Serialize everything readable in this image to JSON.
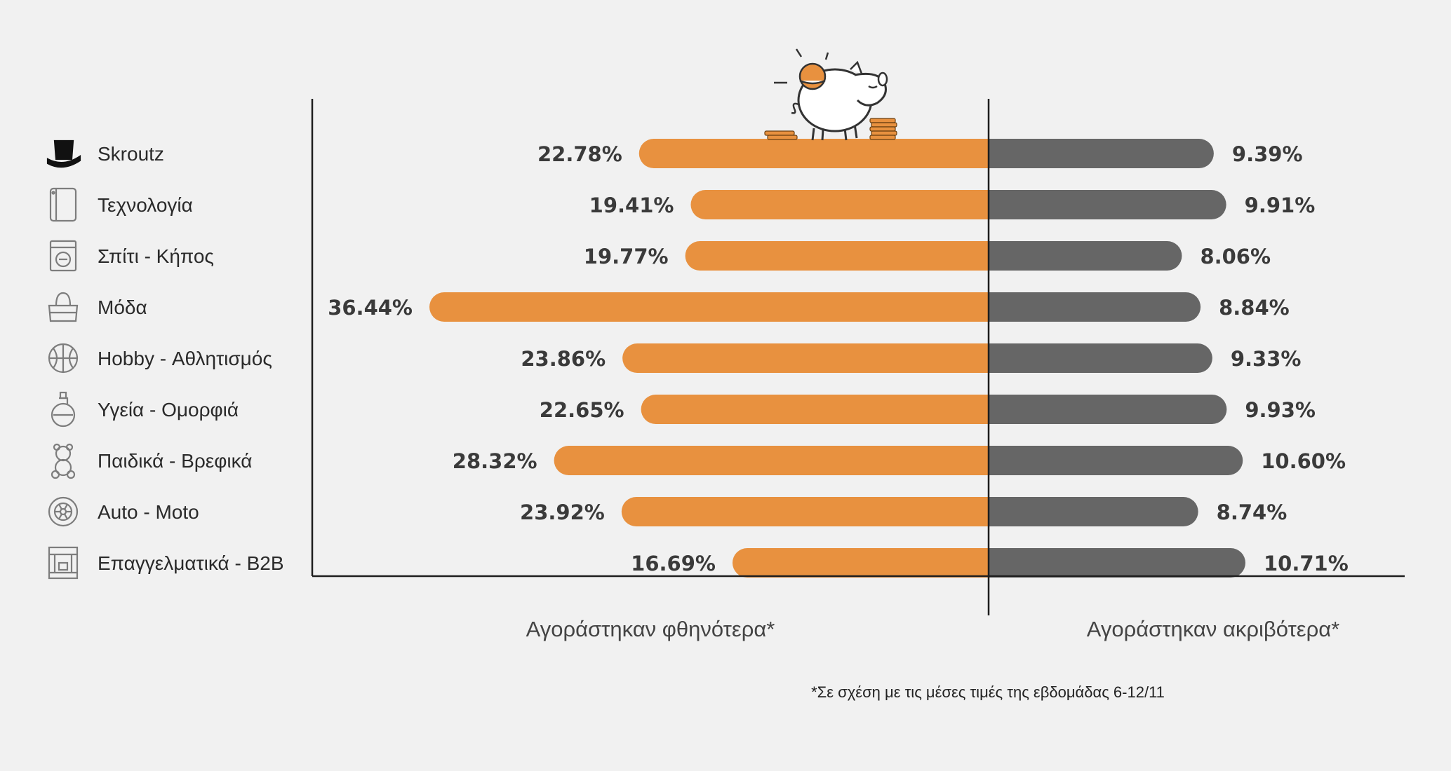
{
  "chart_data": {
    "type": "bar",
    "orientation": "horizontal-diverging",
    "categories": [
      {
        "label": "Skroutz",
        "icon": "top-hat-icon"
      },
      {
        "label": "Τεχνολογία",
        "icon": "smartphone-icon"
      },
      {
        "label": "Σπίτι - Κήπος",
        "icon": "washing-machine-icon"
      },
      {
        "label": "Μόδα",
        "icon": "handbag-icon"
      },
      {
        "label": "Hobby - Αθλητισμός",
        "icon": "basketball-icon"
      },
      {
        "label": "Υγεία - Ομορφιά",
        "icon": "perfume-bottle-icon"
      },
      {
        "label": "Παιδικά - Βρεφικά",
        "icon": "teddy-bear-icon"
      },
      {
        "label": "Auto - Moto",
        "icon": "wheel-icon"
      },
      {
        "label": "Επαγγελματικά - B2B",
        "icon": "coffee-machine-icon"
      }
    ],
    "series": [
      {
        "name": "Αγοράστηκαν φθηνότερα*",
        "color": "#e8913f",
        "side": "left",
        "values": [
          22.78,
          19.41,
          19.77,
          36.44,
          23.86,
          22.65,
          28.32,
          23.92,
          16.69
        ],
        "labels": [
          "22.78%",
          "19.41%",
          "19.77%",
          "36.44%",
          "23.86%",
          "22.65%",
          "28.32%",
          "23.92%",
          "16.69%"
        ]
      },
      {
        "name": "Αγοράστηκαν ακριβότερα*",
        "color": "#666666",
        "side": "right",
        "values": [
          9.39,
          9.91,
          8.06,
          8.84,
          9.33,
          9.93,
          10.6,
          8.74,
          10.71
        ],
        "labels": [
          "9.39%",
          "9.91%",
          "8.06%",
          "8.84%",
          "9.33%",
          "9.93%",
          "10.60%",
          "8.74%",
          "10.71%"
        ]
      }
    ],
    "footnote": "*Σε σχέση με τις μέσες τιμές της εβδομάδας 6-12/11",
    "decoration": "piggy-bank-icon",
    "grid": false
  }
}
